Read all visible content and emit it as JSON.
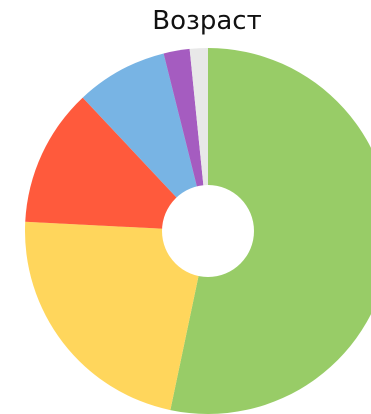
{
  "chart_data": {
    "type": "pie",
    "title": "Возраст",
    "donut": true,
    "legend": "none",
    "slices": [
      {
        "value": 53.3,
        "color": "#98CC67"
      },
      {
        "value": 22.5,
        "color": "#FFD65C"
      },
      {
        "value": 12.2,
        "color": "#FF5A3C"
      },
      {
        "value": 8.1,
        "color": "#78B4E4"
      },
      {
        "value": 2.3,
        "color": "#A55CC0"
      },
      {
        "value": 1.6,
        "color": "#E8E8E8"
      }
    ]
  }
}
